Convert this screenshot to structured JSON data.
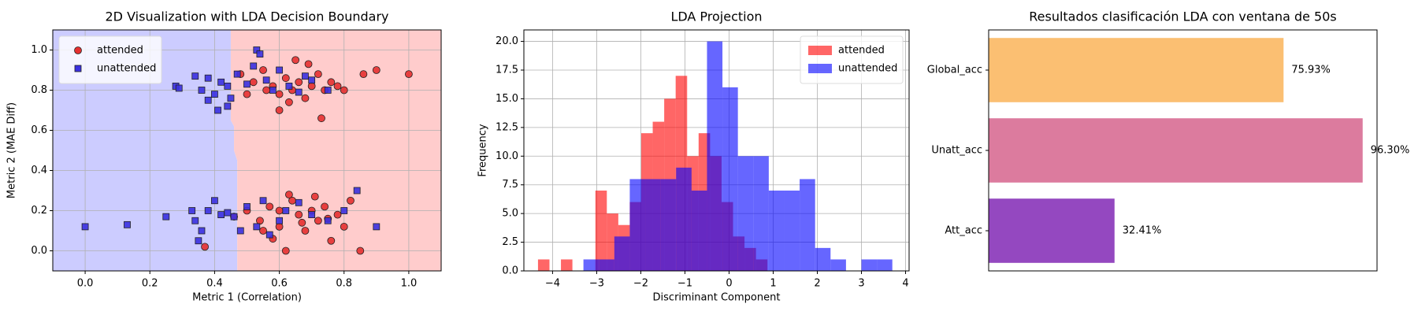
{
  "chart_data": [
    {
      "type": "scatter",
      "title": "2D Visualization with LDA Decision Boundary",
      "xlabel": "Metric 1 (Correlation)",
      "ylabel": "Metric 2 (MAE Diff)",
      "xlim": [
        -0.1,
        1.1
      ],
      "ylim": [
        -0.1,
        1.1
      ],
      "xticks": [
        {
          "value": 0,
          "label": "0.0"
        },
        {
          "value": 0.2,
          "label": "0.2"
        },
        {
          "value": 0.4,
          "label": "0.4"
        },
        {
          "value": 0.6,
          "label": "0.6"
        },
        {
          "value": 0.8,
          "label": "0.8"
        },
        {
          "value": 1,
          "label": "1.0"
        }
      ],
      "yticks": [
        {
          "value": 0,
          "label": "0.0"
        },
        {
          "value": 0.2,
          "label": "0.2"
        },
        {
          "value": 0.4,
          "label": "0.4"
        },
        {
          "value": 0.6,
          "label": "0.6"
        },
        {
          "value": 0.8,
          "label": "0.8"
        },
        {
          "value": 1,
          "label": "1.0"
        }
      ],
      "grid": true,
      "legend": "upper left",
      "decision_boundary": {
        "x": [
          0.45,
          0.45,
          0.46,
          0.46,
          0.47,
          0.47
        ],
        "y": [
          1.1,
          0.65,
          0.62,
          0.5,
          0.45,
          -0.1
        ],
        "colors": [
          "#ccccff",
          "#ffcccc"
        ]
      },
      "series": [
        {
          "name": "attended",
          "color": "#e53030",
          "marker": "circle",
          "x": [
            0.48,
            0.52,
            0.55,
            0.58,
            0.6,
            0.62,
            0.64,
            0.66,
            0.68,
            0.7,
            0.72,
            0.74,
            0.76,
            0.78,
            0.8,
            0.86,
            0.9,
            1.0,
            0.73,
            0.6,
            0.65,
            0.56,
            0.5,
            0.69,
            0.63,
            0.37,
            0.46,
            0.5,
            0.54,
            0.57,
            0.6,
            0.62,
            0.64,
            0.66,
            0.68,
            0.7,
            0.72,
            0.74,
            0.76,
            0.78,
            0.8,
            0.85,
            0.58,
            0.63,
            0.67,
            0.71,
            0.55,
            0.6,
            0.82,
            0.75
          ],
          "y": [
            0.88,
            0.84,
            0.9,
            0.82,
            0.78,
            0.86,
            0.8,
            0.84,
            0.76,
            0.82,
            0.88,
            0.8,
            0.84,
            0.82,
            0.8,
            0.88,
            0.9,
            0.88,
            0.66,
            0.7,
            0.95,
            0.8,
            0.78,
            0.93,
            0.74,
            0.02,
            0.17,
            0.2,
            0.15,
            0.22,
            0.12,
            0.0,
            0.25,
            0.18,
            0.1,
            0.2,
            0.15,
            0.22,
            0.05,
            0.18,
            0.12,
            0.0,
            0.06,
            0.28,
            0.14,
            0.27,
            0.1,
            0.2,
            0.25,
            0.16
          ]
        },
        {
          "name": "unattended",
          "color": "#3a30e0",
          "marker": "square",
          "x": [
            0.28,
            0.29,
            0.34,
            0.36,
            0.38,
            0.4,
            0.42,
            0.44,
            0.45,
            0.47,
            0.5,
            0.53,
            0.54,
            0.56,
            0.6,
            0.63,
            0.66,
            0.7,
            0.75,
            0.44,
            0.41,
            0.52,
            0.58,
            0.68,
            0.38,
            0.0,
            0.13,
            0.25,
            0.33,
            0.34,
            0.36,
            0.38,
            0.4,
            0.42,
            0.44,
            0.46,
            0.5,
            0.53,
            0.55,
            0.57,
            0.6,
            0.62,
            0.66,
            0.7,
            0.75,
            0.8,
            0.84,
            0.9,
            0.35,
            0.48
          ],
          "y": [
            0.82,
            0.81,
            0.87,
            0.8,
            0.86,
            0.78,
            0.84,
            0.82,
            0.76,
            0.88,
            0.83,
            1.0,
            0.98,
            0.85,
            0.9,
            0.82,
            0.79,
            0.85,
            0.8,
            0.72,
            0.7,
            0.92,
            0.8,
            0.87,
            0.75,
            0.12,
            0.13,
            0.17,
            0.2,
            0.15,
            0.1,
            0.2,
            0.25,
            0.18,
            0.19,
            0.17,
            0.22,
            0.12,
            0.25,
            0.08,
            0.15,
            0.2,
            0.24,
            0.18,
            0.15,
            0.2,
            0.3,
            0.12,
            0.05,
            0.1
          ]
        }
      ]
    },
    {
      "type": "histogram",
      "title": "LDA Projection",
      "xlabel": "Discriminant Component",
      "ylabel": "Frequency",
      "xlim": [
        -4.65,
        4.08
      ],
      "ylim": [
        0,
        21
      ],
      "xticks": [
        {
          "value": -4,
          "label": "−4"
        },
        {
          "value": -3,
          "label": "−3"
        },
        {
          "value": -2,
          "label": "−2"
        },
        {
          "value": -1,
          "label": "−1"
        },
        0,
        1,
        2,
        3,
        4
      ],
      "yticks": [
        {
          "value": 0,
          "label": "0.0"
        },
        2.5,
        {
          "value": 5,
          "label": "5.0"
        },
        7.5,
        {
          "value": 10,
          "label": "10.0"
        },
        12.5,
        {
          "value": 15,
          "label": "15.0"
        },
        17.5,
        {
          "value": 20,
          "label": "20.0"
        }
      ],
      "grid": true,
      "legend": "upper right",
      "series": [
        {
          "name": "attended",
          "color": "#ff0000",
          "opacity": 0.6,
          "bins": [
            -4.33,
            -4.07,
            -3.81,
            -3.55,
            -3.29,
            -3.03,
            -2.77,
            -2.51,
            -2.25,
            -1.99,
            -1.73,
            -1.47,
            -1.21,
            -0.95,
            -0.69,
            -0.43,
            -0.17,
            0.09,
            0.35,
            0.61,
            0.87
          ],
          "values": [
            1,
            0,
            1,
            0,
            0,
            7,
            5,
            4,
            6,
            12,
            13,
            15,
            17,
            10,
            12,
            10,
            6,
            3,
            2,
            1
          ]
        },
        {
          "name": "unattended",
          "color": "#0000ff",
          "opacity": 0.6,
          "bins": [
            -3.3,
            -2.95,
            -2.6,
            -2.25,
            -1.9,
            -1.55,
            -1.2,
            -0.85,
            -0.5,
            -0.15,
            0.2,
            0.55,
            0.9,
            1.25,
            1.6,
            1.95,
            2.3,
            2.65,
            3.0,
            3.35,
            3.7
          ],
          "values": [
            1,
            1,
            3,
            8,
            8,
            8,
            9,
            7,
            20,
            16,
            10,
            10,
            7,
            7,
            8,
            2,
            1,
            0,
            1,
            1
          ]
        }
      ]
    },
    {
      "type": "hbar",
      "title": "Resultados clasificación LDA con ventana de 50s",
      "categories": [
        "Global_acc",
        "Unatt_acc",
        "Att_acc"
      ],
      "values": [
        75.93,
        96.3,
        32.41
      ],
      "value_labels": [
        "75.93%",
        "96.30%",
        "32.41%"
      ],
      "colors": [
        "#fbbf72",
        "#dc7b9e",
        "#9448c0"
      ],
      "xlim": [
        0,
        100
      ],
      "grid": false
    }
  ]
}
